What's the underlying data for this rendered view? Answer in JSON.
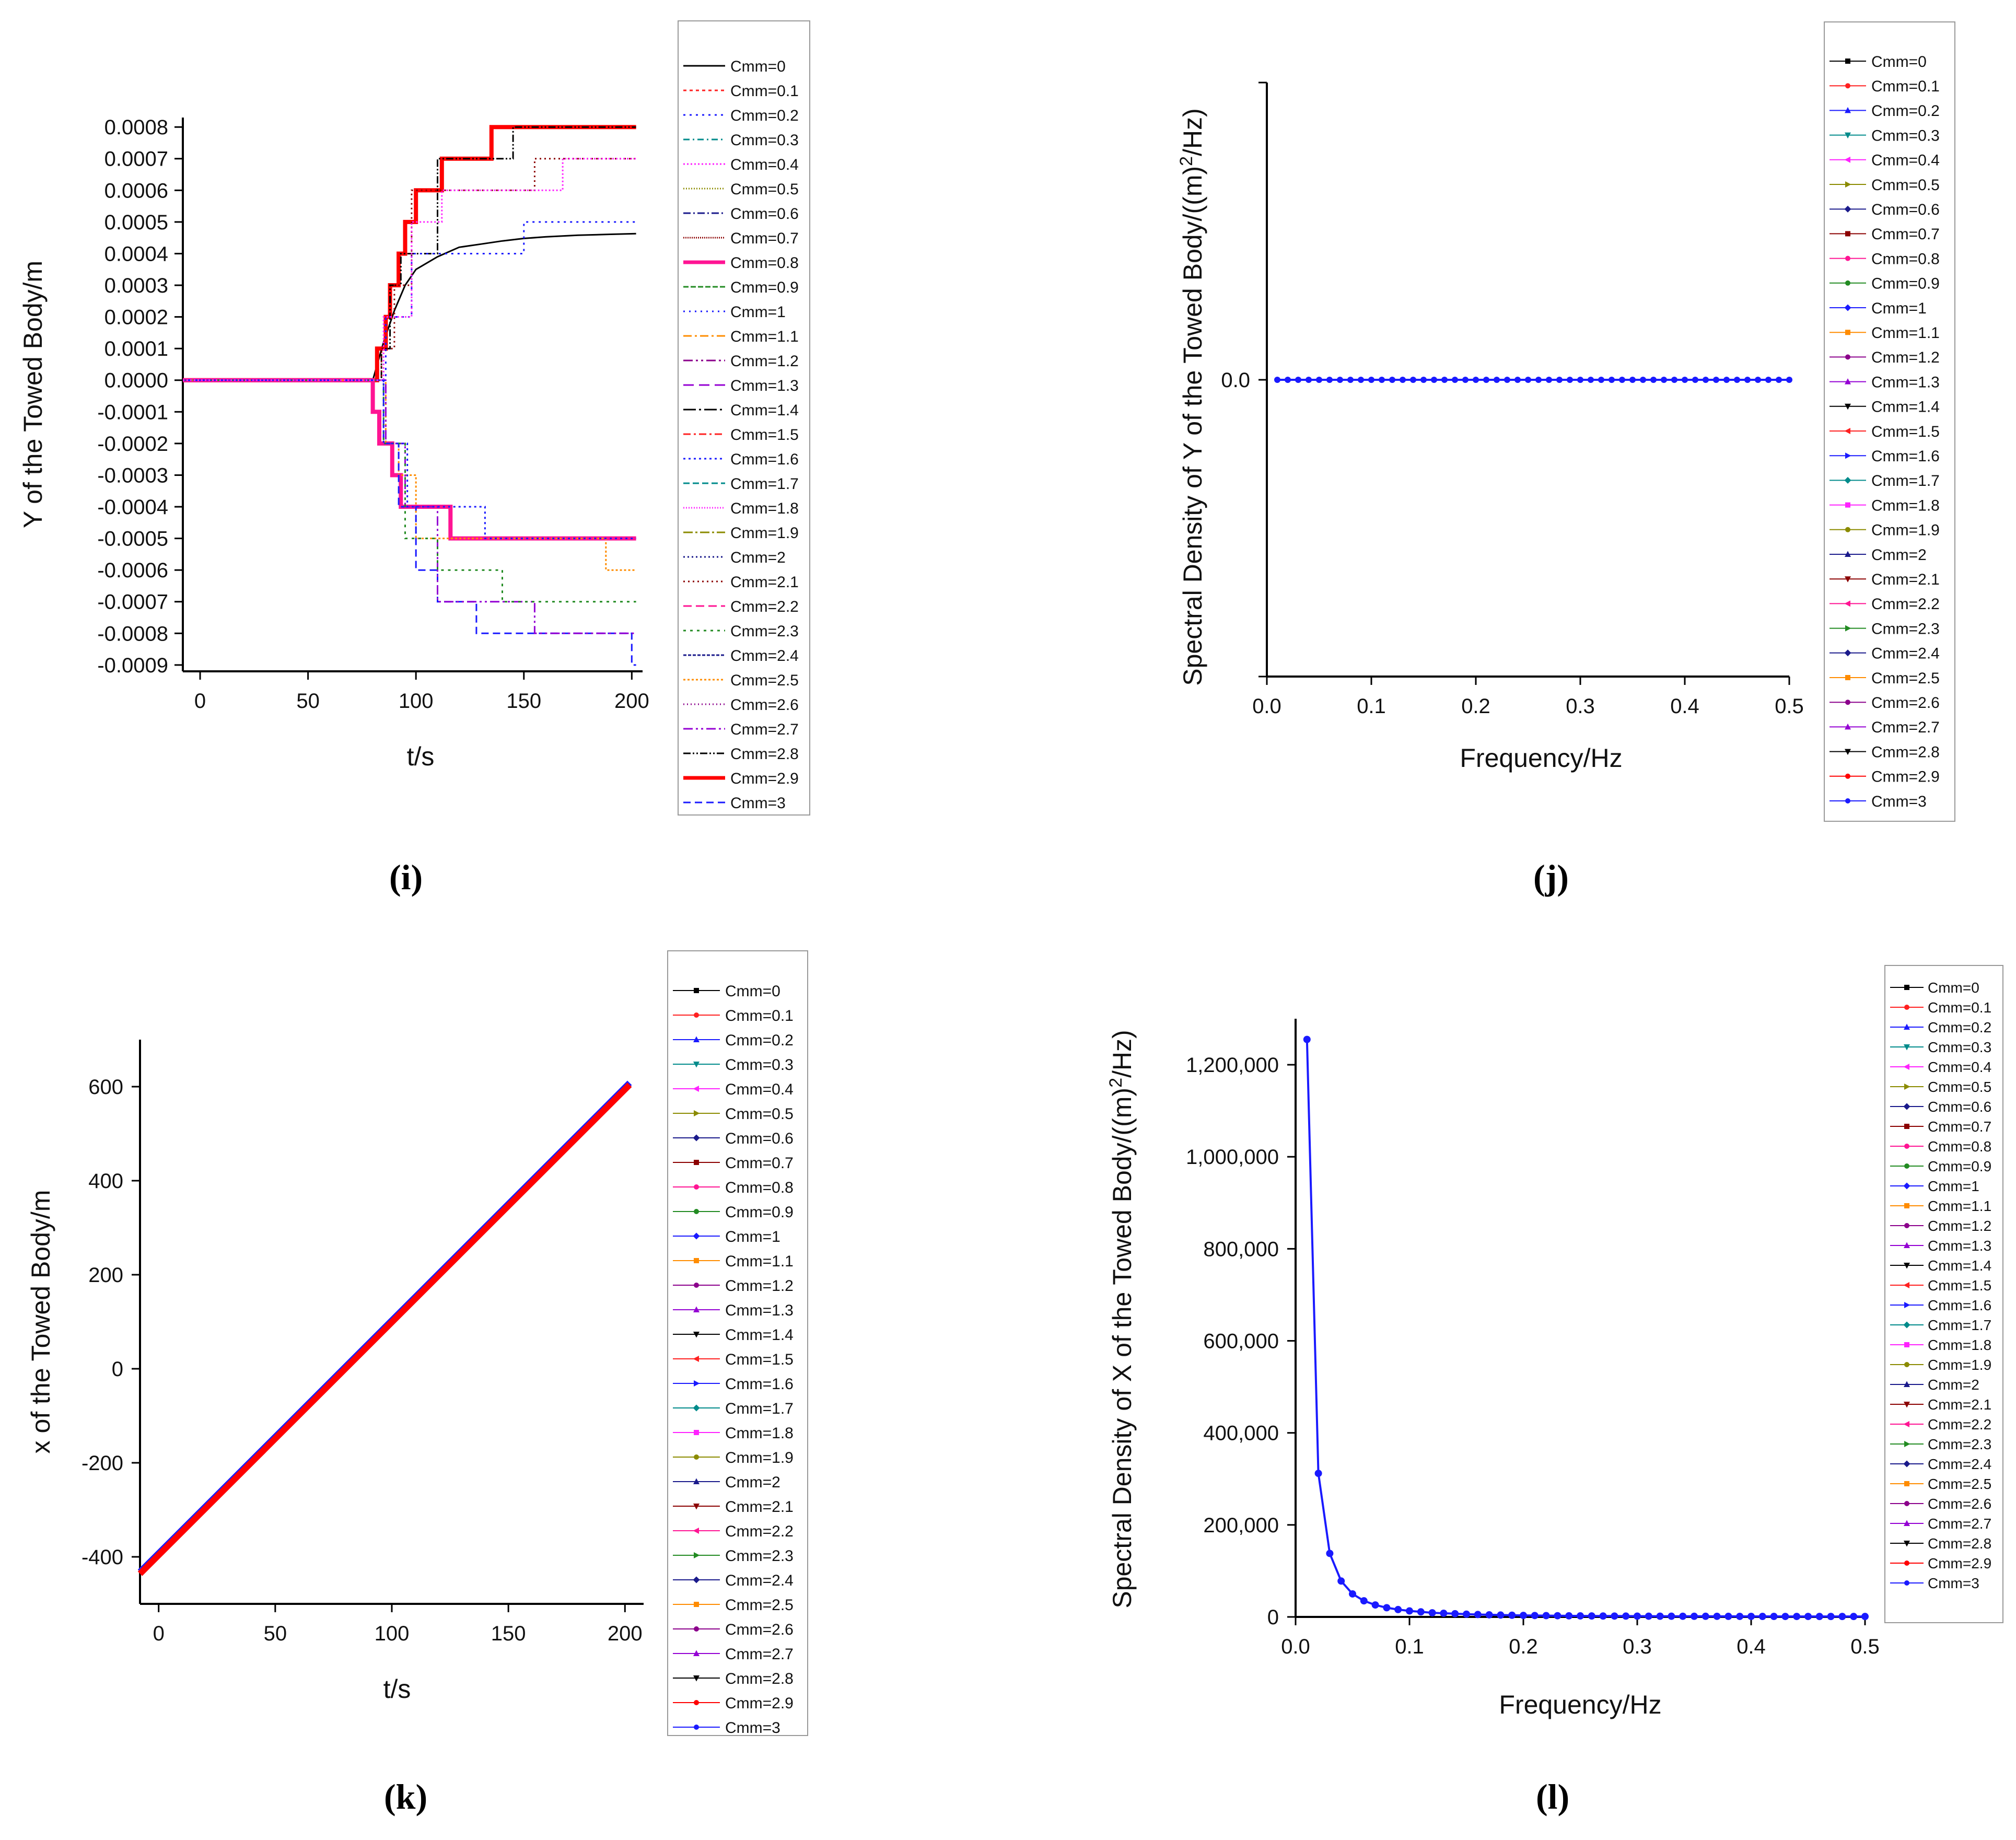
{
  "figure": {
    "labels": [
      "(i)",
      "(j)",
      "(k)",
      "(l)"
    ]
  },
  "legend": {
    "entries": [
      "Cmm=0",
      "Cmm=0.1",
      "Cmm=0.2",
      "Cmm=0.3",
      "Cmm=0.4",
      "Cmm=0.5",
      "Cmm=0.6",
      "Cmm=0.7",
      "Cmm=0.8",
      "Cmm=0.9",
      "Cmm=1",
      "Cmm=1.1",
      "Cmm=1.2",
      "Cmm=1.3",
      "Cmm=1.4",
      "Cmm=1.5",
      "Cmm=1.6",
      "Cmm=1.7",
      "Cmm=1.8",
      "Cmm=1.9",
      "Cmm=2",
      "Cmm=2.1",
      "Cmm=2.2",
      "Cmm=2.3",
      "Cmm=2.4",
      "Cmm=2.5",
      "Cmm=2.6",
      "Cmm=2.7",
      "Cmm=2.8",
      "Cmm=2.9",
      "Cmm=3"
    ],
    "colors": [
      "#000000",
      "#ff2020",
      "#1a1aff",
      "#008b8b",
      "#ff22ff",
      "#8b8b00",
      "#1a1a8b",
      "#8b0000",
      "#ff1493",
      "#228b22",
      "#1a1aff",
      "#ff8c00",
      "#8b008b",
      "#9400d3",
      "#000000",
      "#ff2020",
      "#1a1aff",
      "#008b8b",
      "#ff22ff",
      "#8b8b00",
      "#1a1a8b",
      "#8b0000",
      "#ff1493",
      "#228b22",
      "#1a1a8b",
      "#ff8c00",
      "#8b008b",
      "#9400d3",
      "#000000",
      "#ff0000",
      "#1a1aff"
    ]
  },
  "chart_data": [
    {
      "id": "i",
      "type": "line",
      "title": "",
      "xlabel": "t/s",
      "ylabel": "Y of the Towed Body/m",
      "xlim": [
        -8,
        205
      ],
      "ylim": [
        -0.00092,
        0.00083
      ],
      "xticks": [
        0,
        50,
        100,
        150,
        200
      ],
      "yticks": [
        0.0008,
        0.0007,
        0.0006,
        0.0005,
        0.0004,
        0.0003,
        0.0002,
        0.0001,
        0.0,
        -0.0001,
        -0.0002,
        -0.0003,
        -0.0004,
        -0.0005,
        -0.0006,
        -0.0007,
        -0.0008,
        -0.0009
      ],
      "ytick_labels": [
        "0.0008",
        "0.0007",
        "0.0006",
        "0.0005",
        "0.0004",
        "0.0003",
        "0.0002",
        "0.0001",
        "0.0000",
        "-0.0001",
        "-0.0002",
        "-0.0003",
        "-0.0004",
        "-0.0005",
        "-0.0006",
        "-0.0007",
        "-0.0008",
        "-0.0009"
      ],
      "series": [
        {
          "name": "Cmm=0",
          "x": [
            -8,
            80,
            85,
            90,
            95,
            100,
            110,
            120,
            130,
            140,
            150,
            160,
            175,
            190,
            202
          ],
          "y": [
            0,
            0,
            0.00012,
            0.00022,
            0.0003,
            0.00035,
            0.00039,
            0.00042,
            0.00043,
            0.00044,
            0.000448,
            0.000453,
            0.000458,
            0.000461,
            0.000463
          ]
        },
        {
          "name": "Cmm=2.9",
          "x": [
            -8,
            82,
            82,
            86,
            86,
            88,
            88,
            90,
            90,
            92,
            92,
            95,
            95,
            100,
            100,
            112,
            112,
            135,
            135,
            202
          ],
          "y": [
            0,
            0,
            0.0001,
            0.0001,
            0.0002,
            0.0002,
            0.0003,
            0.0003,
            0.0003,
            0.0003,
            0.0004,
            0.0004,
            0.0005,
            0.0005,
            0.0006,
            0.0006,
            0.0007,
            0.0007,
            0.0008,
            0.0008
          ]
        },
        {
          "name": "Cmm=0.8",
          "x": [
            -8,
            80,
            80,
            83,
            83,
            86,
            86,
            89,
            89,
            93,
            93,
            98,
            98,
            116,
            116,
            202
          ],
          "y": [
            0,
            0,
            -0.0001,
            -0.0001,
            -0.0002,
            -0.0002,
            -0.0002,
            -0.0002,
            -0.0003,
            -0.0003,
            -0.0004,
            -0.0004,
            -0.0004,
            -0.0004,
            -0.0005,
            -0.0005
          ]
        },
        {
          "name": "Cmm=2.8",
          "x": [
            -8,
            84,
            84,
            88,
            88,
            93,
            93,
            110,
            110,
            145,
            145,
            202
          ],
          "y": [
            0,
            0,
            0.0001,
            0.0001,
            0.0003,
            0.0003,
            0.0004,
            0.0004,
            0.0007,
            0.0007,
            0.0008,
            0.0008
          ]
        },
        {
          "name": "Cmm=2.1",
          "x": [
            -8,
            84,
            84,
            90,
            90,
            98,
            98,
            155,
            155,
            202
          ],
          "y": [
            0,
            0,
            0.0001,
            0.0001,
            0.0003,
            0.0003,
            0.0006,
            0.0006,
            0.0007,
            0.0007
          ]
        },
        {
          "name": "Cmm=2.5",
          "x": [
            -8,
            86,
            86,
            92,
            92,
            100,
            100,
            188,
            188,
            202
          ],
          "y": [
            0,
            0,
            -0.0002,
            -0.0002,
            -0.0003,
            -0.0003,
            -0.0005,
            -0.0005,
            -0.0006,
            -0.0006
          ]
        },
        {
          "name": "Cmm=3",
          "x": [
            -8,
            85,
            85,
            92,
            92,
            100,
            100,
            110,
            110,
            128,
            128,
            200,
            200,
            202
          ],
          "y": [
            0,
            0,
            -0.0002,
            -0.0002,
            -0.0004,
            -0.0004,
            -0.0006,
            -0.0006,
            -0.0007,
            -0.0007,
            -0.0008,
            -0.0008,
            -0.0009,
            -0.0009
          ]
        },
        {
          "name": "Cmm=2.7",
          "x": [
            -8,
            86,
            86,
            95,
            95,
            110,
            110,
            155,
            155,
            202
          ],
          "y": [
            0,
            0,
            -0.0002,
            -0.0002,
            -0.0004,
            -0.0004,
            -0.0007,
            -0.0007,
            -0.0008,
            -0.0008
          ]
        },
        {
          "name": "Cmm=2.3",
          "x": [
            -8,
            85,
            85,
            95,
            95,
            110,
            110,
            140,
            140,
            202
          ],
          "y": [
            0,
            0,
            -0.0002,
            -0.0002,
            -0.0005,
            -0.0005,
            -0.0006,
            -0.0006,
            -0.0007,
            -0.0007
          ]
        },
        {
          "name": "Cmm=1.6",
          "x": [
            -8,
            85,
            85,
            96,
            96,
            122,
            122,
            132,
            132,
            202
          ],
          "y": [
            0,
            0,
            -0.0002,
            -0.0002,
            -0.0004,
            -0.0004,
            -0.0004,
            -0.0004,
            -0.0005,
            -0.0005
          ]
        },
        {
          "name": "Cmm=0.2",
          "x": [
            -8,
            86,
            86,
            98,
            98,
            105,
            105,
            150,
            150,
            202
          ],
          "y": [
            0,
            0,
            0.0002,
            0.0002,
            0.0004,
            0.0004,
            0.0004,
            0.0004,
            0.0005,
            0.0005
          ]
        },
        {
          "name": "Cmm=0.4",
          "x": [
            -8,
            85,
            85,
            98,
            98,
            112,
            112,
            168,
            168,
            202
          ],
          "y": [
            0,
            0,
            0.0002,
            0.0002,
            0.0005,
            0.0005,
            0.0006,
            0.0006,
            0.0007,
            0.0007
          ]
        }
      ]
    },
    {
      "id": "j",
      "type": "line",
      "title": "",
      "xlabel": "Frequency/Hz",
      "ylabel": "Spectral Density of Y of the Towed Body/((m)²/Hz)",
      "ylabel_parts": [
        "Spectral Density of Y of the Towed Body/((m)",
        "2",
        "/Hz)"
      ],
      "xlim": [
        0,
        0.5
      ],
      "xticks": [
        0.0,
        0.1,
        0.2,
        0.3,
        0.4,
        0.5
      ],
      "xtick_labels": [
        "0.0",
        "0.1",
        "0.2",
        "0.3",
        "0.4",
        "0.5"
      ],
      "yticks": [
        0.0
      ],
      "ytick_labels": [
        "0.0"
      ],
      "series": [
        {
          "name": "Cmm=3",
          "x": [
            0.01,
            0.02,
            0.03,
            0.04,
            0.05,
            0.06,
            0.07,
            0.08,
            0.09,
            0.1,
            0.11,
            0.12,
            0.13,
            0.14,
            0.15,
            0.16,
            0.17,
            0.18,
            0.19,
            0.2,
            0.21,
            0.22,
            0.23,
            0.24,
            0.25,
            0.26,
            0.27,
            0.28,
            0.29,
            0.3,
            0.31,
            0.32,
            0.33,
            0.34,
            0.35,
            0.36,
            0.37,
            0.38,
            0.39,
            0.4,
            0.41,
            0.42,
            0.43,
            0.44,
            0.45,
            0.46,
            0.47,
            0.48,
            0.49,
            0.5
          ],
          "y": [
            0,
            0,
            0,
            0,
            0,
            0,
            0,
            0,
            0,
            0,
            0,
            0,
            0,
            0,
            0,
            0,
            0,
            0,
            0,
            0,
            0,
            0,
            0,
            0,
            0,
            0,
            0,
            0,
            0,
            0,
            0,
            0,
            0,
            0,
            0,
            0,
            0,
            0,
            0,
            0,
            0,
            0,
            0,
            0,
            0,
            0,
            0,
            0,
            0,
            0
          ]
        }
      ]
    },
    {
      "id": "k",
      "type": "line",
      "title": "",
      "xlabel": "t/s",
      "ylabel": "x of the Towed Body/m",
      "xlim": [
        -8,
        208
      ],
      "ylim": [
        -500,
        700
      ],
      "xticks": [
        0,
        50,
        100,
        150,
        200
      ],
      "yticks": [
        600,
        400,
        200,
        0,
        -200,
        -400
      ],
      "series": [
        {
          "name": "Cmm=3",
          "x": [
            -8,
            202
          ],
          "y": [
            -432,
            608
          ]
        },
        {
          "name": "Cmm=2.9",
          "x": [
            -8,
            202
          ],
          "y": [
            -436,
            604
          ]
        }
      ]
    },
    {
      "id": "l",
      "type": "line",
      "title": "",
      "xlabel": "Frequency/Hz",
      "ylabel": "Spectral Density of X of the Towed Body/((m)²/Hz)",
      "ylabel_parts": [
        "Spectral Density of X of the Towed Body/((m)",
        "2",
        "/Hz)"
      ],
      "xlim": [
        0,
        0.5
      ],
      "ylim": [
        0,
        1300000
      ],
      "xticks": [
        0.0,
        0.1,
        0.2,
        0.3,
        0.4,
        0.5
      ],
      "xtick_labels": [
        "0.0",
        "0.1",
        "0.2",
        "0.3",
        "0.4",
        "0.5"
      ],
      "yticks": [
        0,
        200000,
        400000,
        600000,
        800000,
        1000000,
        1200000
      ],
      "ytick_labels": [
        "0",
        "200,000",
        "400,000",
        "600,000",
        "800,000",
        "1,000,000",
        "1,200,000"
      ],
      "series": [
        {
          "name": "Cmm=3",
          "x": [
            0.01,
            0.02,
            0.03,
            0.04,
            0.05,
            0.06,
            0.07,
            0.08,
            0.09,
            0.1,
            0.11,
            0.12,
            0.13,
            0.14,
            0.15,
            0.16,
            0.17,
            0.18,
            0.19,
            0.2,
            0.21,
            0.22,
            0.23,
            0.24,
            0.25,
            0.26,
            0.27,
            0.28,
            0.29,
            0.3,
            0.31,
            0.32,
            0.33,
            0.34,
            0.35,
            0.36,
            0.37,
            0.38,
            0.39,
            0.4,
            0.41,
            0.42,
            0.43,
            0.44,
            0.45,
            0.46,
            0.47,
            0.48,
            0.49,
            0.5
          ],
          "y": [
            1255000,
            312000,
            138000,
            78000,
            50000,
            35000,
            26000,
            20000,
            16000,
            13000,
            11000,
            9000,
            8000,
            7000,
            6000,
            5200,
            4600,
            4100,
            3700,
            3300,
            3000,
            2800,
            2600,
            2400,
            2200,
            2100,
            2000,
            1900,
            1800,
            1700,
            1600,
            1550,
            1500,
            1450,
            1400,
            1350,
            1300,
            1250,
            1200,
            1150,
            1100,
            1080,
            1060,
            1040,
            1020,
            1000,
            990,
            980,
            970,
            960
          ]
        }
      ]
    }
  ]
}
